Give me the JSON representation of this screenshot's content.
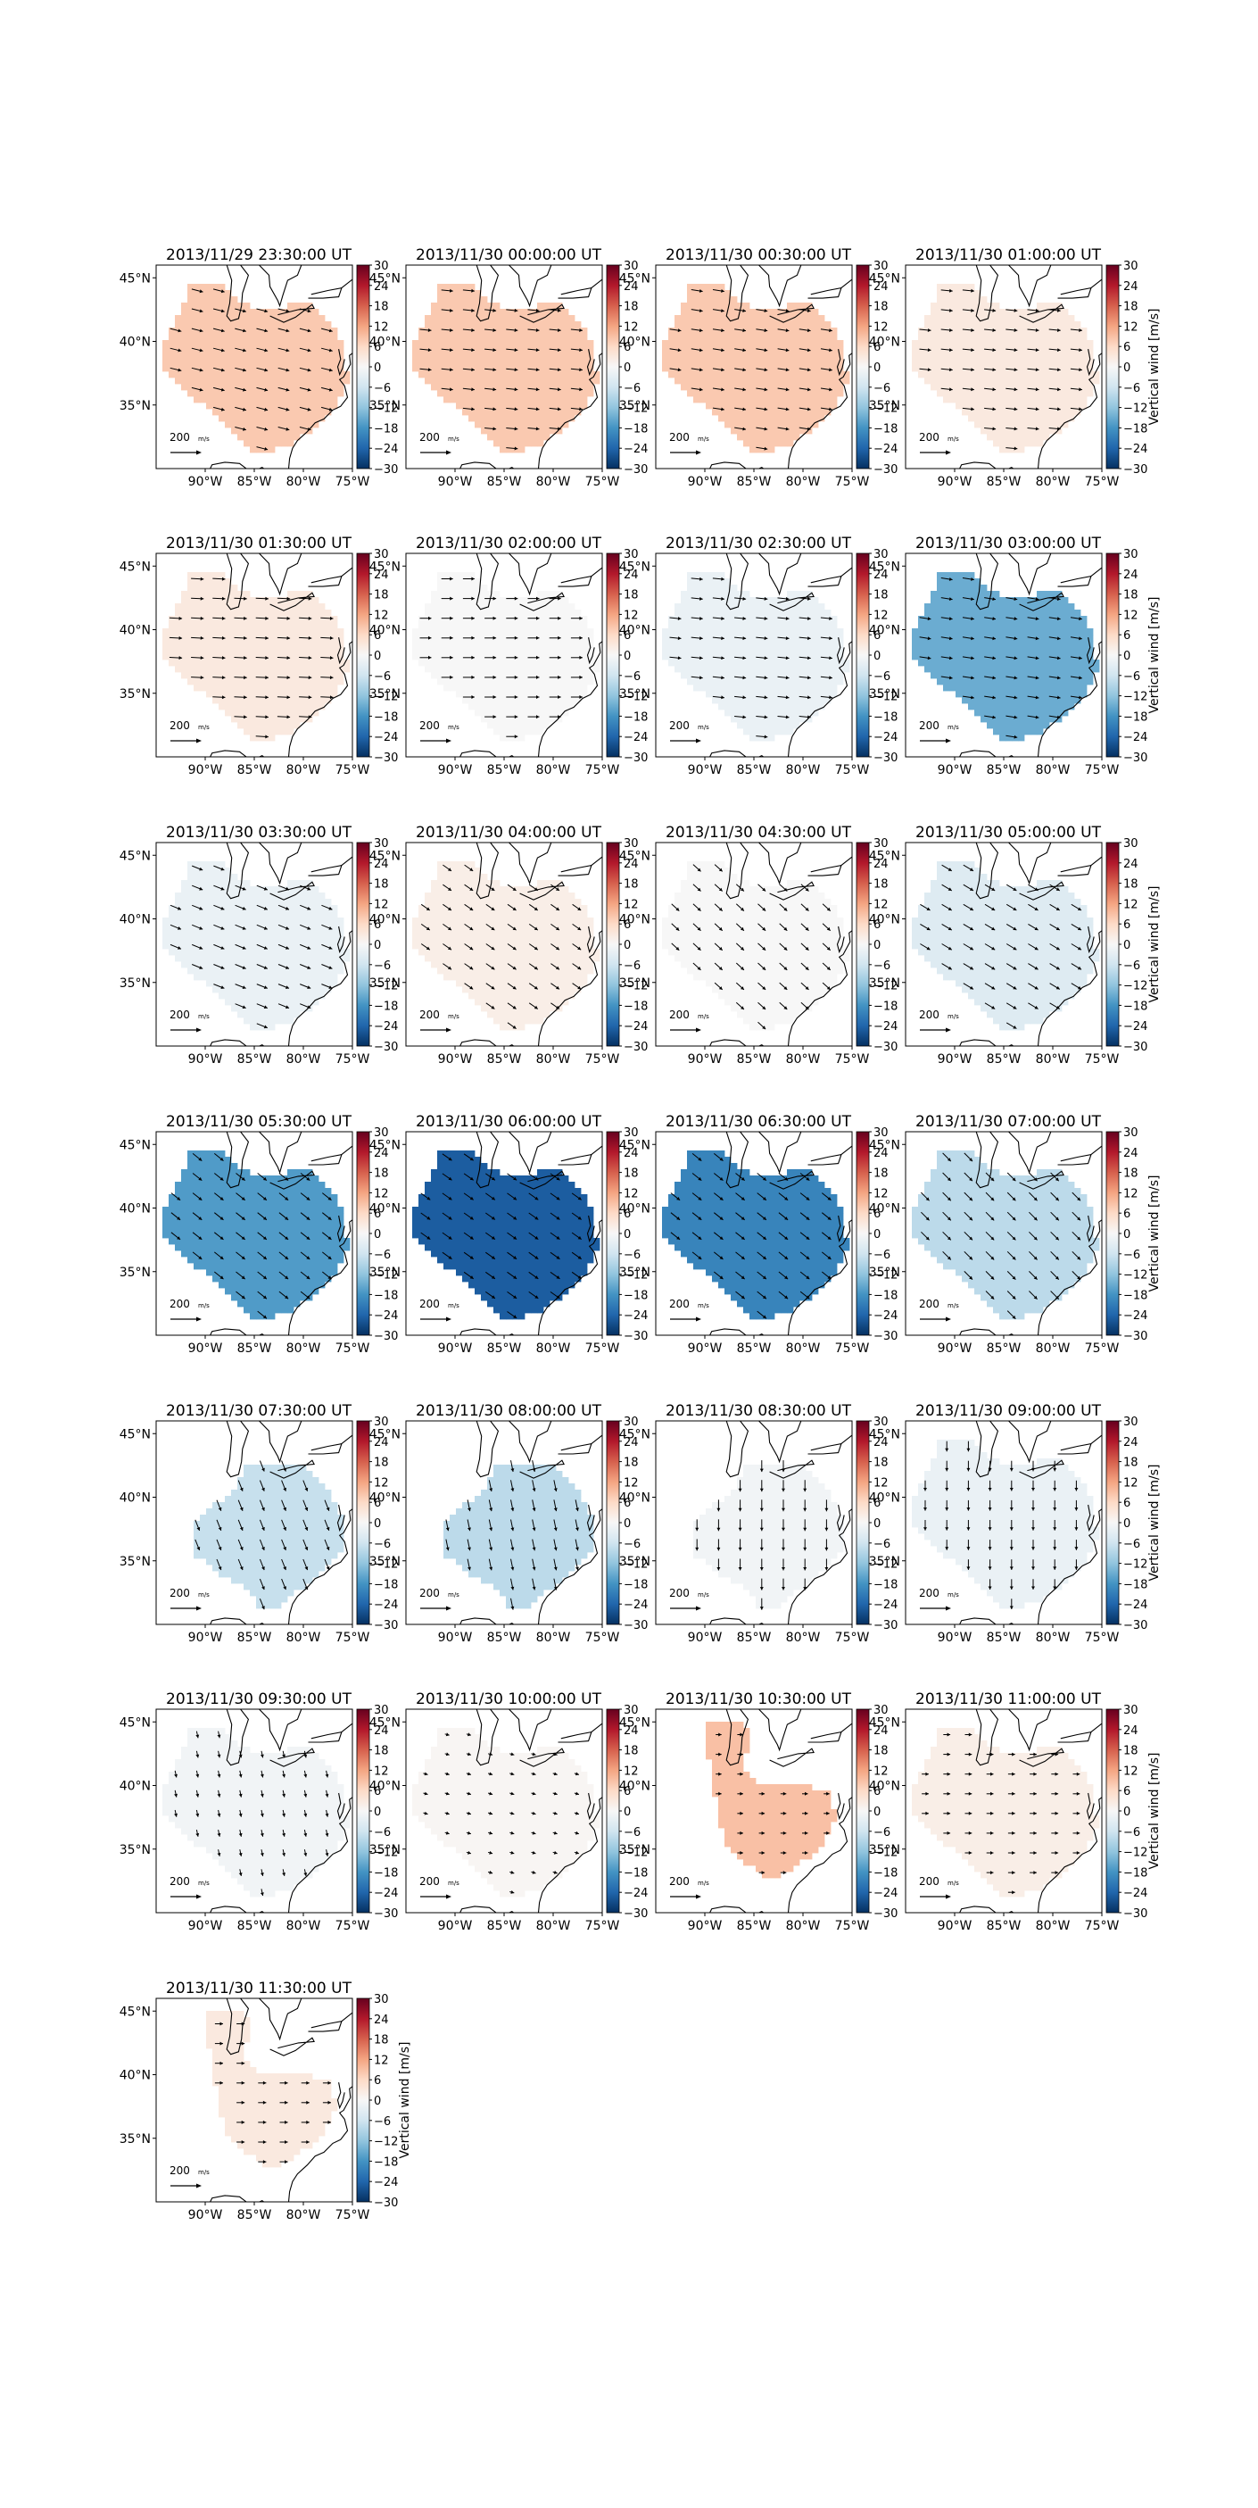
{
  "figure": {
    "colormap": [
      "#053061",
      "#2166ac",
      "#4393c3",
      "#92c5de",
      "#d1e5f0",
      "#f7f7f7",
      "#fddbc7",
      "#f4a582",
      "#d6604d",
      "#b2182b",
      "#67001f"
    ],
    "colorbar": {
      "label": "Vertical wind [m/s]",
      "vmin": -30,
      "vmax": 30,
      "ticks": [
        "30",
        "24",
        "18",
        "12",
        "6",
        "0",
        "−6",
        "−12",
        "−18",
        "−24",
        "−30"
      ]
    },
    "map_extent": {
      "lon": [
        -95,
        -75
      ],
      "lat": [
        30,
        46
      ]
    },
    "x_ticks": [
      "90°W",
      "85°W",
      "80°W",
      "75°W"
    ],
    "y_ticks": [
      "45°N",
      "40°N",
      "35°N"
    ],
    "reference_arrow_label": "200",
    "reference_arrow_units": "m/s",
    "panels": [
      {
        "title": "2013/11/29 23:30:00 UT",
        "vertical_wind": 8,
        "region": "full",
        "arrow_dir": [
          1,
          0.25
        ],
        "arrow_scale": 1.0
      },
      {
        "title": "2013/11/30 00:00:00 UT",
        "vertical_wind": 8,
        "region": "full",
        "arrow_dir": [
          1,
          0.1
        ],
        "arrow_scale": 1.0
      },
      {
        "title": "2013/11/30 00:30:00 UT",
        "vertical_wind": 8,
        "region": "full",
        "arrow_dir": [
          1,
          0.15
        ],
        "arrow_scale": 1.0
      },
      {
        "title": "2013/11/30 01:00:00 UT",
        "vertical_wind": 3,
        "region": "full",
        "arrow_dir": [
          1,
          0.1
        ],
        "arrow_scale": 1.0
      },
      {
        "title": "2013/11/30 01:30:00 UT",
        "vertical_wind": 3,
        "region": "full",
        "arrow_dir": [
          1,
          0.05
        ],
        "arrow_scale": 1.1
      },
      {
        "title": "2013/11/30 02:00:00 UT",
        "vertical_wind": 0,
        "region": "full",
        "arrow_dir": [
          1,
          0.0
        ],
        "arrow_scale": 1.0
      },
      {
        "title": "2013/11/30 02:30:00 UT",
        "vertical_wind": -2,
        "region": "full",
        "arrow_dir": [
          1,
          0.1
        ],
        "arrow_scale": 1.0
      },
      {
        "title": "2013/11/30 03:00:00 UT",
        "vertical_wind": -15,
        "region": "full",
        "arrow_dir": [
          1,
          0.15
        ],
        "arrow_scale": 1.0
      },
      {
        "title": "2013/11/30 03:30:00 UT",
        "vertical_wind": -2,
        "region": "full",
        "arrow_dir": [
          1,
          0.4
        ],
        "arrow_scale": 1.0
      },
      {
        "title": "2013/11/30 04:00:00 UT",
        "vertical_wind": 2,
        "region": "full",
        "arrow_dir": [
          1,
          0.7
        ],
        "arrow_scale": 0.9
      },
      {
        "title": "2013/11/30 04:30:00 UT",
        "vertical_wind": 0,
        "region": "full",
        "arrow_dir": [
          1,
          0.9
        ],
        "arrow_scale": 0.9
      },
      {
        "title": "2013/11/30 05:00:00 UT",
        "vertical_wind": -4,
        "region": "full",
        "arrow_dir": [
          1,
          0.6
        ],
        "arrow_scale": 1.0
      },
      {
        "title": "2013/11/30 05:30:00 UT",
        "vertical_wind": -17,
        "region": "full",
        "arrow_dir": [
          1,
          0.8
        ],
        "arrow_scale": 1.0
      },
      {
        "title": "2013/11/30 06:00:00 UT",
        "vertical_wind": -25,
        "region": "full",
        "arrow_dir": [
          1,
          0.7
        ],
        "arrow_scale": 1.0
      },
      {
        "title": "2013/11/30 06:30:00 UT",
        "vertical_wind": -20,
        "region": "full",
        "arrow_dir": [
          1,
          0.8
        ],
        "arrow_scale": 1.0
      },
      {
        "title": "2013/11/30 07:00:00 UT",
        "vertical_wind": -8,
        "region": "full",
        "arrow_dir": [
          1,
          1.0
        ],
        "arrow_scale": 1.0
      },
      {
        "title": "2013/11/30 07:30:00 UT",
        "vertical_wind": -7,
        "region": "south",
        "arrow_dir": [
          0.4,
          1
        ],
        "arrow_scale": 1.0
      },
      {
        "title": "2013/11/30 08:00:00 UT",
        "vertical_wind": -8,
        "region": "south",
        "arrow_dir": [
          0.2,
          1
        ],
        "arrow_scale": 1.0
      },
      {
        "title": "2013/11/30 08:30:00 UT",
        "vertical_wind": -1,
        "region": "south",
        "arrow_dir": [
          0.0,
          1
        ],
        "arrow_scale": 1.0
      },
      {
        "title": "2013/11/30 09:00:00 UT",
        "vertical_wind": -2,
        "region": "full",
        "arrow_dir": [
          0.0,
          1
        ],
        "arrow_scale": 0.9
      },
      {
        "title": "2013/11/30 09:30:00 UT",
        "vertical_wind": -1,
        "region": "full",
        "arrow_dir": [
          0.2,
          1
        ],
        "arrow_scale": 0.6
      },
      {
        "title": "2013/11/30 10:00:00 UT",
        "vertical_wind": 0.5,
        "region": "full",
        "arrow_dir": [
          1,
          0.3
        ],
        "arrow_scale": 0.4
      },
      {
        "title": "2013/11/30 10:30:00 UT",
        "vertical_wind": 9,
        "region": "narrow",
        "arrow_dir": [
          1,
          0.0
        ],
        "arrow_scale": 0.5
      },
      {
        "title": "2013/11/30 11:00:00 UT",
        "vertical_wind": 2,
        "region": "full",
        "arrow_dir": [
          1,
          0.0
        ],
        "arrow_scale": 0.6
      },
      {
        "title": "2013/11/30 11:30:00 UT",
        "vertical_wind": 3,
        "region": "narrow",
        "arrow_dir": [
          1,
          0.0
        ],
        "arrow_scale": 0.7
      }
    ]
  }
}
